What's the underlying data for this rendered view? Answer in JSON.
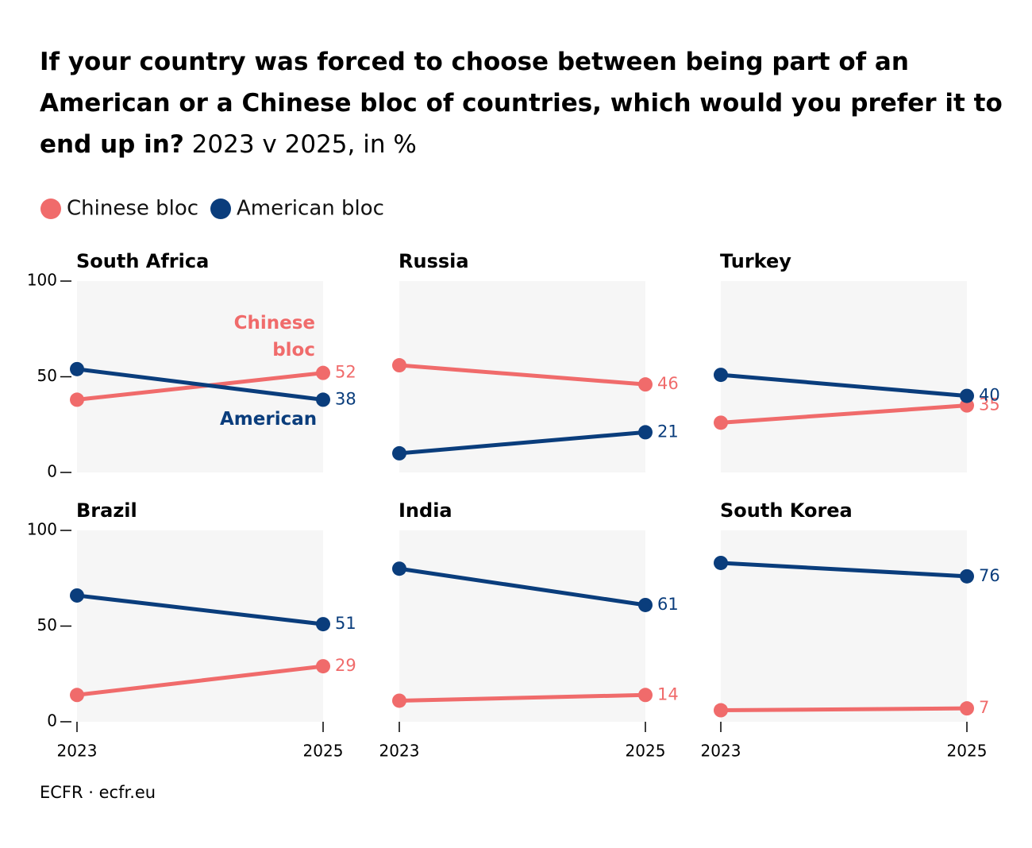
{
  "title": "If your country was forced to choose between being part of an American or a Chinese bloc of countries, which would you prefer it to end up in?",
  "subtitle": "2023 v 2025, in %",
  "source": "ECFR · ecfr.eu",
  "chart_data": [
    {
      "type": "line",
      "title": "South Africa",
      "categories": [
        "2023",
        "2025"
      ],
      "series": [
        {
          "name": "Chinese bloc",
          "color": "#f06b6b",
          "values": [
            38,
            52
          ]
        },
        {
          "name": "American bloc",
          "color": "#0a3d7c",
          "values": [
            54,
            38
          ]
        }
      ],
      "annotations": [
        "Chinese bloc",
        "American"
      ],
      "ylim": [
        0,
        100
      ],
      "yticks": [
        0,
        50,
        100
      ]
    },
    {
      "type": "line",
      "title": "Russia",
      "categories": [
        "2023",
        "2025"
      ],
      "series": [
        {
          "name": "Chinese bloc",
          "color": "#f06b6b",
          "values": [
            56,
            46
          ]
        },
        {
          "name": "American bloc",
          "color": "#0a3d7c",
          "values": [
            10,
            21
          ]
        }
      ],
      "ylim": [
        0,
        100
      ]
    },
    {
      "type": "line",
      "title": "Turkey",
      "categories": [
        "2023",
        "2025"
      ],
      "series": [
        {
          "name": "Chinese bloc",
          "color": "#f06b6b",
          "values": [
            26,
            35
          ]
        },
        {
          "name": "American bloc",
          "color": "#0a3d7c",
          "values": [
            51,
            40
          ]
        }
      ],
      "ylim": [
        0,
        100
      ]
    },
    {
      "type": "line",
      "title": "Brazil",
      "categories": [
        "2023",
        "2025"
      ],
      "series": [
        {
          "name": "Chinese bloc",
          "color": "#f06b6b",
          "values": [
            14,
            29
          ]
        },
        {
          "name": "American bloc",
          "color": "#0a3d7c",
          "values": [
            66,
            51
          ]
        }
      ],
      "ylim": [
        0,
        100
      ],
      "yticks": [
        0,
        50,
        100
      ]
    },
    {
      "type": "line",
      "title": "India",
      "categories": [
        "2023",
        "2025"
      ],
      "series": [
        {
          "name": "Chinese bloc",
          "color": "#f06b6b",
          "values": [
            11,
            14
          ]
        },
        {
          "name": "American bloc",
          "color": "#0a3d7c",
          "values": [
            80,
            61
          ]
        }
      ],
      "ylim": [
        0,
        100
      ]
    },
    {
      "type": "line",
      "title": "South Korea",
      "categories": [
        "2023",
        "2025"
      ],
      "series": [
        {
          "name": "Chinese bloc",
          "color": "#f06b6b",
          "values": [
            6,
            7
          ]
        },
        {
          "name": "American bloc",
          "color": "#0a3d7c",
          "values": [
            83,
            76
          ]
        }
      ],
      "ylim": [
        0,
        100
      ]
    }
  ]
}
